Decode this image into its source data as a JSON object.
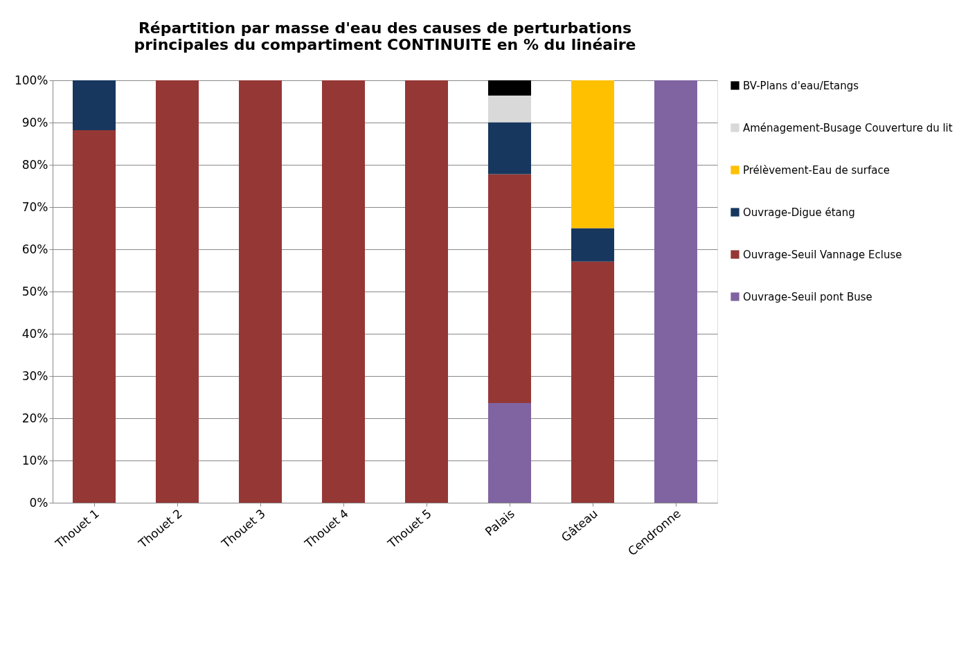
{
  "chart_data": {
    "type": "bar",
    "title": "Répartition par masse d'eau des causes de perturbations principales du compartiment CONTINUITE en % du linéaire",
    "categories": [
      "Thouet 1",
      "Thouet 2",
      "Thouet 3",
      "Thouet 4",
      "Thouet 5",
      "Palais",
      "Gâteau",
      "Cendronne"
    ],
    "stacked": true,
    "series": [
      {
        "name": "Ouvrage-Seuil pont Buse",
        "color": "#8064a2",
        "values": [
          0,
          0,
          0,
          0,
          0,
          23.6,
          0,
          100
        ]
      },
      {
        "name": "Ouvrage-Seuil Vannage Ecluse",
        "color": "#953735",
        "values": [
          88.2,
          100,
          100,
          100,
          100,
          54.2,
          57.1,
          0
        ]
      },
      {
        "name": "Ouvrage-Digue étang",
        "color": "#17375e",
        "values": [
          11.8,
          0,
          0,
          0,
          0,
          12.3,
          7.9,
          0
        ]
      },
      {
        "name": "Prélèvement-Eau de surface",
        "color": "#ffc000",
        "values": [
          0,
          0,
          0,
          0,
          0,
          0,
          35.0,
          0
        ]
      },
      {
        "name": "Aménagement-Busage Couverture du lit",
        "color": "#d9d9d9",
        "values": [
          0,
          0,
          0,
          0,
          0,
          6.3,
          0,
          0
        ]
      },
      {
        "name": "BV-Plans d'eau/Etangs",
        "color": "#000000",
        "values": [
          0,
          0,
          0,
          0,
          0,
          3.6,
          0,
          0
        ]
      }
    ],
    "ylim": [
      0,
      100
    ],
    "yticks": [
      {
        "value": 0,
        "label": "0%"
      },
      {
        "value": 10,
        "label": "10%"
      },
      {
        "value": 20,
        "label": "20%"
      },
      {
        "value": 30,
        "label": "30%"
      },
      {
        "value": 40,
        "label": "40%"
      },
      {
        "value": 50,
        "label": "50%"
      },
      {
        "value": 60,
        "label": "60%"
      },
      {
        "value": 70,
        "label": "70%"
      },
      {
        "value": 80,
        "label": "80%"
      },
      {
        "value": 90,
        "label": "90%"
      },
      {
        "value": 100,
        "label": "100%"
      }
    ],
    "grid": "y",
    "legend": "right"
  }
}
